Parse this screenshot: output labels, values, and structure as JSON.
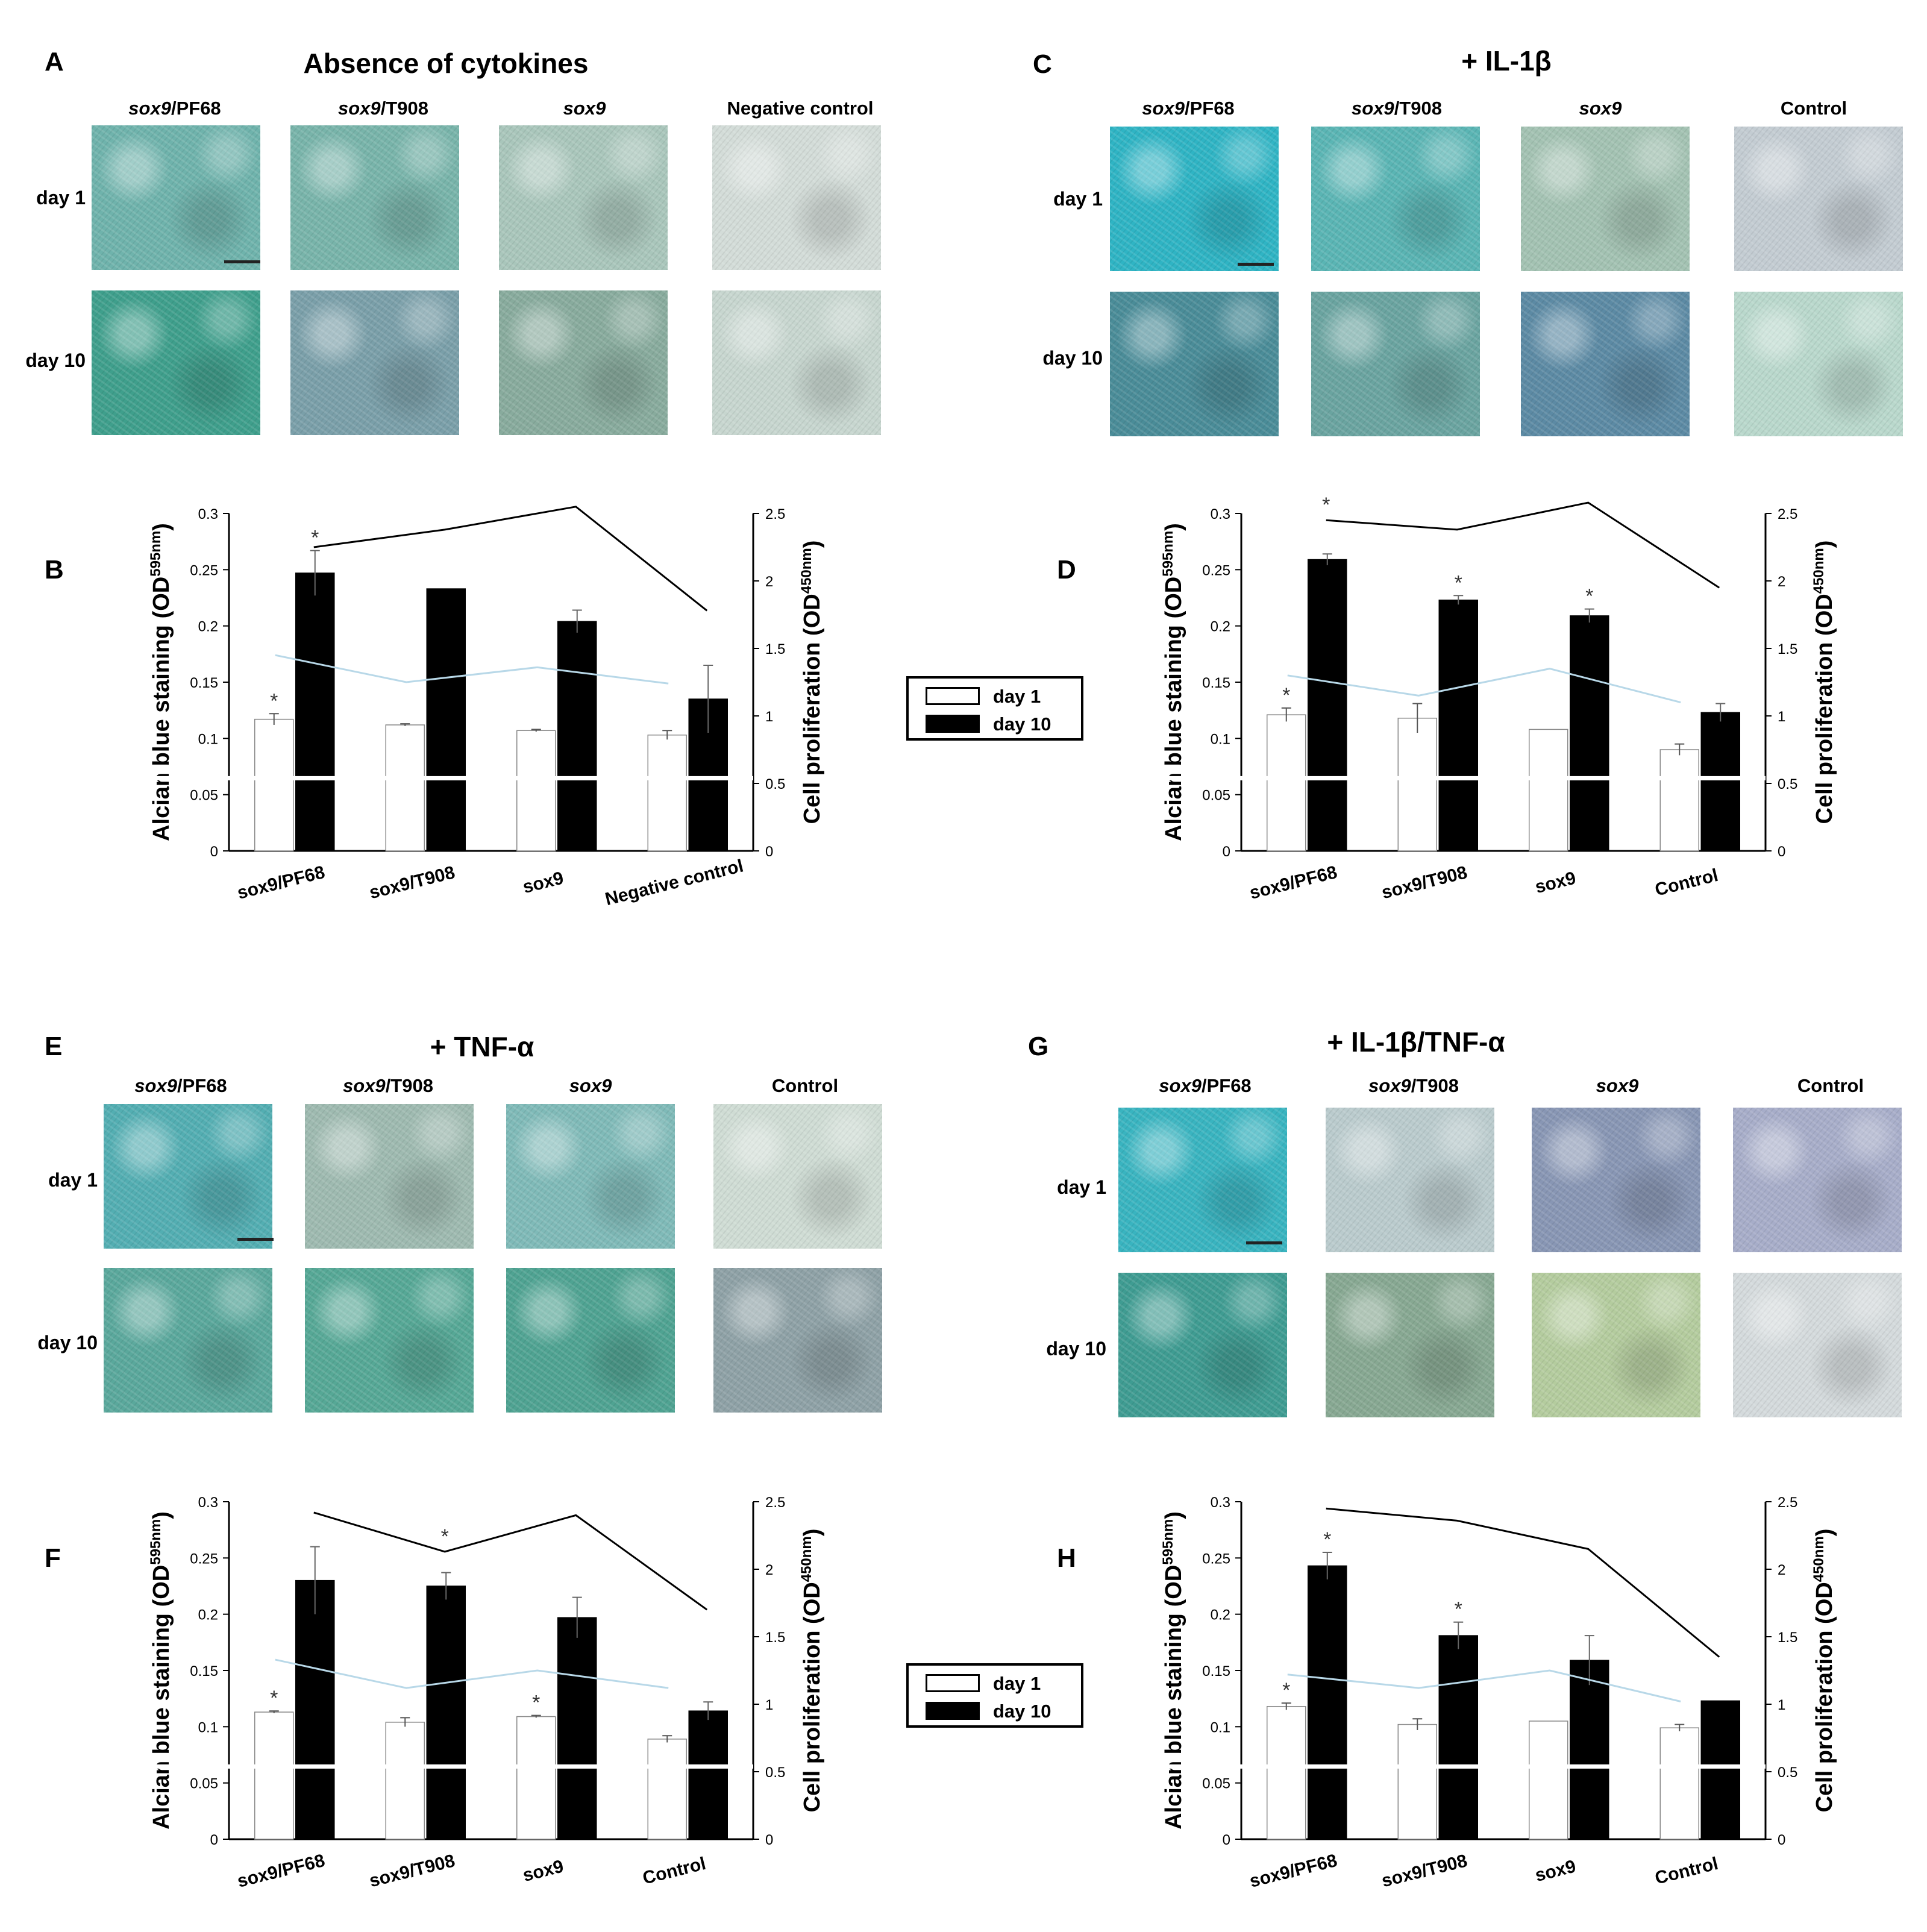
{
  "microscopy_panels": [
    {
      "letter": "A",
      "title": "Absence of cytokines",
      "columns": [
        {
          "italic": "sox9",
          "plain": "/PF68"
        },
        {
          "italic": "sox9",
          "plain": "/T908"
        },
        {
          "italic": "sox9",
          "plain": ""
        },
        {
          "italic": "",
          "plain": "Negative control"
        }
      ],
      "rows": [
        "day 1",
        "day 10"
      ],
      "stain_colors": [
        [
          "#6fb3ac",
          "#78b4aa",
          "#a9c6bb",
          "#d3dcd8"
        ],
        [
          "#3f9f8c",
          "#7a9fa9",
          "#88ab9d",
          "#c7d6cf"
        ]
      ]
    },
    {
      "letter": "C",
      "title": "+ IL-1β",
      "columns": [
        {
          "italic": "sox9",
          "plain": "/PF68"
        },
        {
          "italic": "sox9",
          "plain": "/T908"
        },
        {
          "italic": "sox9",
          "plain": ""
        },
        {
          "italic": "",
          "plain": "Control"
        }
      ],
      "rows": [
        "day 1",
        "day 10"
      ],
      "stain_colors": [
        [
          "#2fb4c4",
          "#5ab5b4",
          "#a3c2b2",
          "#c3ccd2"
        ],
        [
          "#4a8c98",
          "#6aa4a0",
          "#5c8aa4",
          "#b9d8cc"
        ]
      ]
    },
    {
      "letter": "E",
      "title": "+ TNF-α",
      "columns": [
        {
          "italic": "sox9",
          "plain": "/PF68"
        },
        {
          "italic": "sox9",
          "plain": "/T908"
        },
        {
          "italic": "sox9",
          "plain": ""
        },
        {
          "italic": "",
          "plain": "Control"
        }
      ],
      "rows": [
        "day 1",
        "day 10"
      ],
      "stain_colors": [
        [
          "#53aeb2",
          "#9ebab0",
          "#7fbab8",
          "#cfdcd4"
        ],
        [
          "#5aa89c",
          "#56a896",
          "#4fa392",
          "#8ea1a6"
        ]
      ]
    },
    {
      "letter": "G",
      "title": "+ IL-1β/TNF-α",
      "columns": [
        {
          "italic": "sox9",
          "plain": "/PF68"
        },
        {
          "italic": "sox9",
          "plain": "/T908"
        },
        {
          "italic": "sox9",
          "plain": ""
        },
        {
          "italic": "",
          "plain": "Control"
        }
      ],
      "rows": [
        "day 1",
        "day 10"
      ],
      "stain_colors": [
        [
          "#39b4c0",
          "#bacbcd",
          "#8896b4",
          "#a7adc9"
        ],
        [
          "#3f9c92",
          "#87a892",
          "#b4cc9e",
          "#d4dadc"
        ]
      ]
    }
  ],
  "chart_data": [
    {
      "letter": "B",
      "type": "bar",
      "categories": [
        "sox9/PF68",
        "sox9/T908",
        "sox9",
        "Negative control"
      ],
      "series": [
        {
          "name": "day 1",
          "values": [
            0.117,
            0.112,
            0.107,
            0.103
          ],
          "errors": [
            0.005,
            0.001,
            0.001,
            0.004
          ],
          "sig": [
            true,
            false,
            false,
            false
          ]
        },
        {
          "name": "day 10",
          "values": [
            0.247,
            0.233,
            0.204,
            0.135
          ],
          "errors": [
            0.02,
            0.0,
            0.01,
            0.03
          ],
          "sig": [
            true,
            false,
            false,
            false
          ]
        }
      ],
      "proliferation": {
        "day 1": [
          1.45,
          1.25,
          1.36,
          1.24
        ],
        "day 10": [
          2.25,
          2.38,
          2.55,
          1.78
        ]
      },
      "ylabel_left": {
        "text": "Alcian blue staining (OD",
        "sup": "595nm",
        "close": ")"
      },
      "ylabel_right": {
        "text": "Cell proliferation (OD",
        "sup": "450nm",
        "close": ")"
      },
      "ylim": [
        0,
        0.3
      ],
      "ylim_right": [
        0,
        2.5
      ],
      "yticks": [
        "0",
        "0.05",
        "0.1",
        "0.15",
        "0.2",
        "0.25",
        "0.3"
      ],
      "yticks_right": [
        "0",
        "0.5",
        "1",
        "1.5",
        "2",
        "2.5"
      ]
    },
    {
      "letter": "D",
      "type": "bar",
      "categories": [
        "sox9/PF68",
        "sox9/T908",
        "sox9",
        "Control"
      ],
      "series": [
        {
          "name": "day 1",
          "values": [
            0.121,
            0.118,
            0.108,
            0.09
          ],
          "errors": [
            0.006,
            0.013,
            0.0,
            0.005
          ],
          "sig": [
            true,
            false,
            false,
            false
          ]
        },
        {
          "name": "day 10",
          "values": [
            0.259,
            0.223,
            0.209,
            0.123
          ],
          "errors": [
            0.005,
            0.004,
            0.006,
            0.008
          ],
          "sig": [
            false,
            true,
            true,
            false
          ]
        }
      ],
      "proliferation": {
        "day 1": [
          1.3,
          1.15,
          1.35,
          1.1
        ],
        "day 10": [
          2.45,
          2.38,
          2.58,
          1.95
        ]
      },
      "prolif_sig": [
        true,
        false,
        false,
        false
      ],
      "ylabel_left": {
        "text": "Alcian blue staining (OD",
        "sup": "595nm",
        "close": ")"
      },
      "ylabel_right": {
        "text": "Cell proliferation (OD",
        "sup": "450nm",
        "close": ")"
      },
      "ylim": [
        0,
        0.3
      ],
      "ylim_right": [
        0,
        2.5
      ],
      "yticks": [
        "0",
        "0.05",
        "0.1",
        "0.15",
        "0.2",
        "0.25",
        "0.3"
      ],
      "yticks_right": [
        "0",
        "0.5",
        "1",
        "1.5",
        "2",
        "2.5"
      ]
    },
    {
      "letter": "F",
      "type": "bar",
      "categories": [
        "sox9/PF68",
        "sox9/T908",
        "sox9",
        "Control"
      ],
      "series": [
        {
          "name": "day 1",
          "values": [
            0.113,
            0.104,
            0.109,
            0.089
          ],
          "errors": [
            0.001,
            0.004,
            0.001,
            0.003
          ],
          "sig": [
            true,
            false,
            true,
            false
          ]
        },
        {
          "name": "day 10",
          "values": [
            0.23,
            0.225,
            0.197,
            0.114
          ],
          "errors": [
            0.03,
            0.012,
            0.018,
            0.008
          ],
          "sig": [
            false,
            false,
            false,
            false
          ]
        }
      ],
      "proliferation": {
        "day 1": [
          1.33,
          1.12,
          1.25,
          1.12
        ],
        "day 10": [
          2.42,
          2.13,
          2.4,
          1.7
        ]
      },
      "prolif_sig": [
        false,
        true,
        false,
        false
      ],
      "ylabel_left": {
        "text": "Alcian blue staining (OD",
        "sup": "595nm",
        "close": ")"
      },
      "ylabel_right": {
        "text": "Cell proliferation (OD",
        "sup": "450nm",
        "close": ")"
      },
      "ylim": [
        0,
        0.3
      ],
      "ylim_right": [
        0,
        2.5
      ],
      "yticks": [
        "0",
        "0.05",
        "0.1",
        "0.15",
        "0.2",
        "0.25",
        "0.3"
      ],
      "yticks_right": [
        "0",
        "0.5",
        "1",
        "1.5",
        "2",
        "2.5"
      ]
    },
    {
      "letter": "H",
      "type": "bar",
      "categories": [
        "sox9/PF68",
        "sox9/T908",
        "sox9",
        "Control"
      ],
      "series": [
        {
          "name": "day 1",
          "values": [
            0.118,
            0.102,
            0.105,
            0.099
          ],
          "errors": [
            0.003,
            0.005,
            0.0,
            0.003
          ],
          "sig": [
            true,
            false,
            false,
            false
          ]
        },
        {
          "name": "day 10",
          "values": [
            0.243,
            0.181,
            0.159,
            0.123
          ],
          "errors": [
            0.012,
            0.012,
            0.022,
            0.0
          ],
          "sig": [
            true,
            true,
            false,
            false
          ]
        }
      ],
      "proliferation": {
        "day 1": [
          1.22,
          1.12,
          1.25,
          1.02
        ],
        "day 10": [
          2.45,
          2.36,
          2.15,
          1.35
        ]
      },
      "ylabel_left": {
        "text": "Alcian blue staining (OD",
        "sup": "595nm",
        "close": ")"
      },
      "ylabel_right": {
        "text": "Cell proliferation (OD",
        "sup": "450nm",
        "close": ")"
      },
      "ylim": [
        0,
        0.3
      ],
      "ylim_right": [
        0,
        2.5
      ],
      "yticks": [
        "0",
        "0.05",
        "0.1",
        "0.15",
        "0.2",
        "0.25",
        "0.3"
      ],
      "yticks_right": [
        "0",
        "0.5",
        "1",
        "1.5",
        "2",
        "2.5"
      ]
    }
  ],
  "legend": {
    "items": [
      "day 1",
      "day 10"
    ],
    "colors": [
      "#ffffff",
      "#000000"
    ]
  },
  "colors": {
    "day1_line": "#b8d8e8",
    "day10_line": "#000000",
    "bar_day1": "#ffffff",
    "bar_day10": "#000000"
  },
  "significance_marker": "*"
}
